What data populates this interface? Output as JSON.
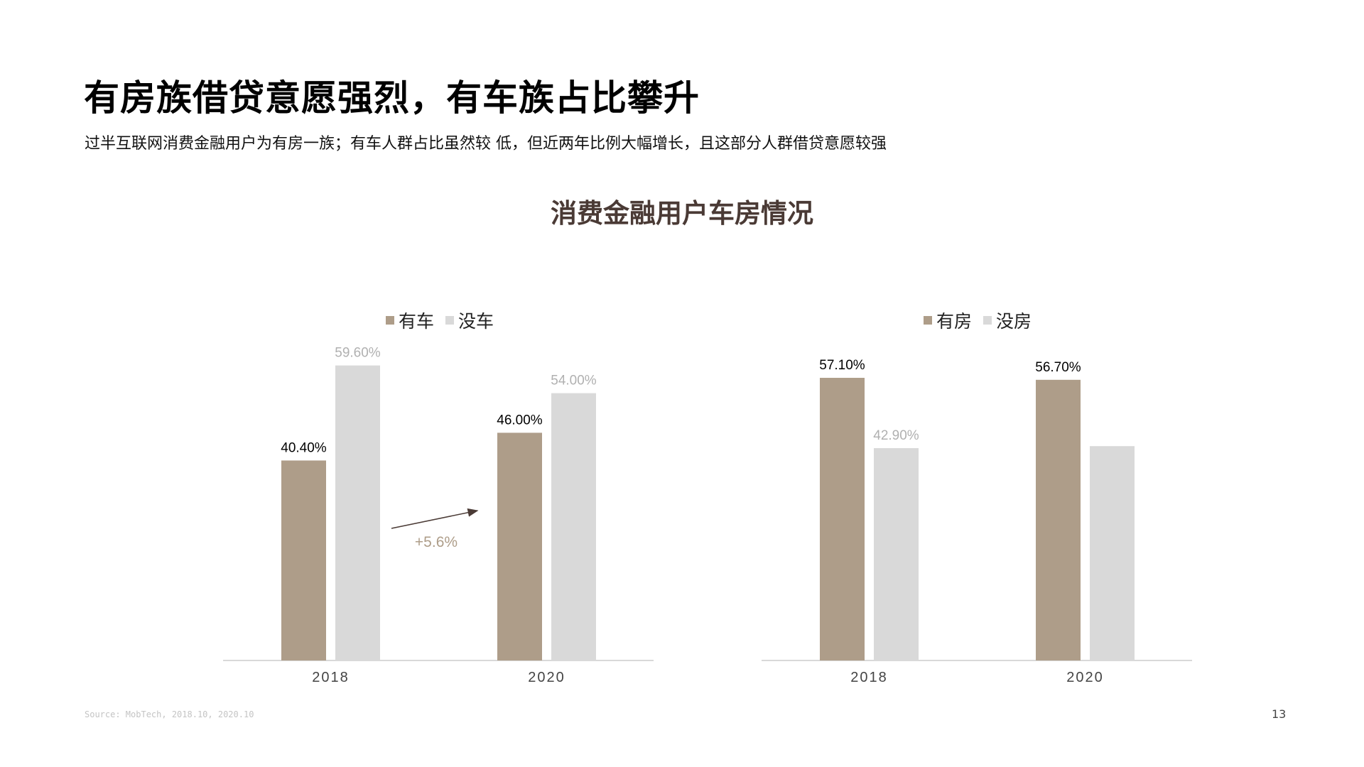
{
  "header": {
    "title": "有房族借贷意愿强烈，有车族占比攀升",
    "subtitle": "过半互联网消费金融用户为有房一族；有车人群占比虽然较 低，但近两年比例大幅增长，且这部分人群借贷意愿较强"
  },
  "chart_title": "消费金融用户车房情况",
  "footer": {
    "source": "Source: MobTech, 2018.10, 2020.10",
    "page_number": "13"
  },
  "colors": {
    "primary": "#ae9d89",
    "secondary": "#d9d9d9",
    "label_dark": "#000000",
    "label_light": "#b0b0b0",
    "annotation": "#ae9d89",
    "arrow": "#4a3a35",
    "axis": "#d9d9d9"
  },
  "chart_data": [
    {
      "type": "bar",
      "categories": [
        "2018",
        "2020"
      ],
      "series": [
        {
          "name": "有车",
          "values": [
            40.4,
            46.0
          ],
          "labels": [
            "40.40%",
            "46.00%"
          ],
          "color": "#ae9d89"
        },
        {
          "name": "没车",
          "values": [
            59.6,
            54.0
          ],
          "labels": [
            "59.60%",
            "54.00%"
          ],
          "color": "#d9d9d9"
        }
      ],
      "ylim": [
        0,
        66
      ],
      "legend": "top-center",
      "annotation": {
        "text": "+5.6%",
        "arrow": "from 2018 有车 toward 2020 有车"
      }
    },
    {
      "type": "bar",
      "categories": [
        "2018",
        "2020"
      ],
      "series": [
        {
          "name": "有房",
          "values": [
            57.1,
            56.7
          ],
          "labels": [
            "57.10%",
            "56.70%"
          ],
          "color": "#ae9d89"
        },
        {
          "name": "没房",
          "values": [
            42.9,
            43.3
          ],
          "labels": [
            "42.90%",
            ""
          ],
          "color": "#d9d9d9"
        }
      ],
      "ylim": [
        0,
        66
      ],
      "legend": "top-center"
    }
  ]
}
